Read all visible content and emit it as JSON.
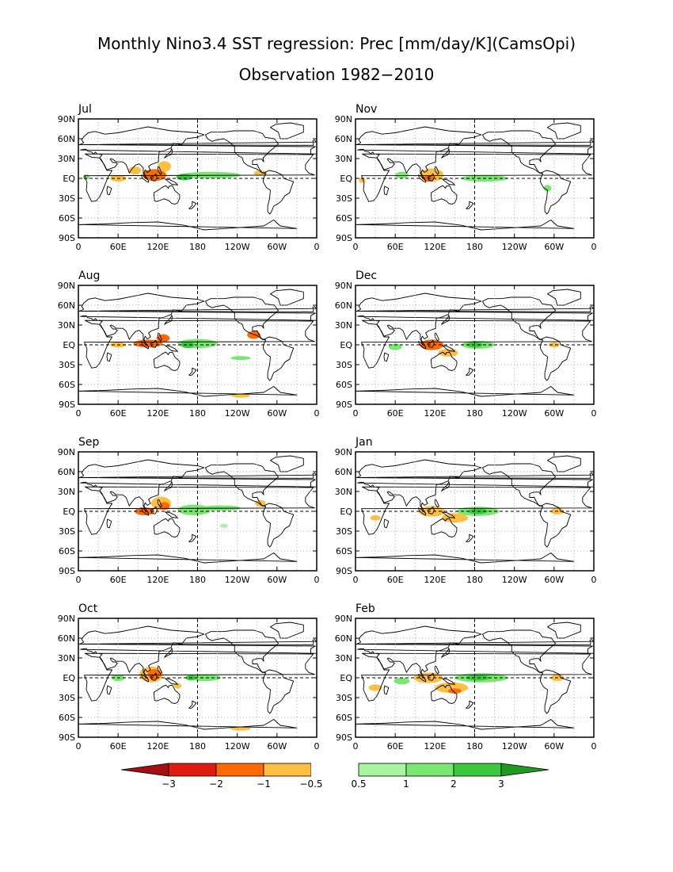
{
  "chart_data": {
    "type": "heatmap",
    "title": "Monthly Nino3.4 SST regression: Prec [mm/day/K](CamsOpi)",
    "subtitle": "Observation 1982−2010",
    "x_tick_labels": [
      "0",
      "60E",
      "120E",
      "180",
      "120W",
      "60W",
      "0"
    ],
    "y_tick_labels": [
      "90N",
      "60N",
      "30N",
      "EQ",
      "30S",
      "60S",
      "90S"
    ],
    "xlim_deg_east": [
      0,
      360
    ],
    "ylim_deg_north": [
      -90,
      90
    ],
    "grid": "dotted at 30 degree intervals; dashed lines at EQ and 180",
    "colorbar": {
      "orientation": "horizontal",
      "placement": "bottom",
      "levels": [
        -3,
        -2,
        -1,
        -0.5,
        0.5,
        1,
        2,
        3
      ],
      "level_labels": [
        "−3",
        "−2",
        "−1",
        "−0.5",
        "0.5",
        "1",
        "2",
        "3"
      ],
      "colors": [
        "#a50f0f",
        "#e01b10",
        "#ff6a00",
        "#ffbf40",
        "#ffffff",
        "#a8f5a0",
        "#78e870",
        "#3cc83c",
        "#1e9a1e"
      ]
    },
    "panels": [
      {
        "month": "Jul",
        "regions": [
          {
            "lon": 115,
            "lat": 5,
            "rx": 18,
            "ry": 9,
            "value": -2
          },
          {
            "lon": 130,
            "lat": 18,
            "rx": 10,
            "ry": 8,
            "value": -1
          },
          {
            "lon": 85,
            "lat": 12,
            "rx": 10,
            "ry": 6,
            "value": -1
          },
          {
            "lon": 60,
            "lat": 0,
            "rx": 12,
            "ry": 5,
            "value": -1
          },
          {
            "lon": 200,
            "lat": 5,
            "rx": 45,
            "ry": 5,
            "value": 1
          },
          {
            "lon": 160,
            "lat": 2,
            "rx": 12,
            "ry": 5,
            "value": 2
          },
          {
            "lon": 275,
            "lat": 8,
            "rx": 10,
            "ry": 4,
            "value": -1
          },
          {
            "lon": 12,
            "lat": 2,
            "rx": 5,
            "ry": 4,
            "value": 1
          }
        ]
      },
      {
        "month": "Aug",
        "regions": [
          {
            "lon": 105,
            "lat": 2,
            "rx": 22,
            "ry": 6,
            "value": -2
          },
          {
            "lon": 128,
            "lat": 10,
            "rx": 10,
            "ry": 6,
            "value": -2
          },
          {
            "lon": 60,
            "lat": 0,
            "rx": 12,
            "ry": 4,
            "value": -1
          },
          {
            "lon": 180,
            "lat": 2,
            "rx": 30,
            "ry": 7,
            "value": 1
          },
          {
            "lon": 165,
            "lat": 0,
            "rx": 10,
            "ry": 5,
            "value": 2
          },
          {
            "lon": 265,
            "lat": 15,
            "rx": 10,
            "ry": 6,
            "value": -2
          },
          {
            "lon": 245,
            "lat": -20,
            "rx": 15,
            "ry": 3,
            "value": 1
          },
          {
            "lon": 245,
            "lat": -77,
            "rx": 14,
            "ry": 3,
            "value": -1
          }
        ]
      },
      {
        "month": "Sep",
        "regions": [
          {
            "lon": 100,
            "lat": 0,
            "rx": 15,
            "ry": 6,
            "value": -2
          },
          {
            "lon": 125,
            "lat": 12,
            "rx": 15,
            "ry": 10,
            "value": -1
          },
          {
            "lon": 130,
            "lat": 8,
            "rx": 8,
            "ry": 6,
            "value": -2
          },
          {
            "lon": 175,
            "lat": 2,
            "rx": 25,
            "ry": 8,
            "value": 1
          },
          {
            "lon": 215,
            "lat": 5,
            "rx": 30,
            "ry": 4,
            "value": 1
          },
          {
            "lon": 275,
            "lat": 12,
            "rx": 8,
            "ry": 5,
            "value": -1
          },
          {
            "lon": 220,
            "lat": -22,
            "rx": 6,
            "ry": 3,
            "value": 0.5
          }
        ]
      },
      {
        "month": "Oct",
        "regions": [
          {
            "lon": 110,
            "lat": 5,
            "rx": 18,
            "ry": 12,
            "value": -1
          },
          {
            "lon": 115,
            "lat": 5,
            "rx": 10,
            "ry": 8,
            "value": -2
          },
          {
            "lon": 60,
            "lat": 0,
            "rx": 10,
            "ry": 5,
            "value": 1
          },
          {
            "lon": 190,
            "lat": 0,
            "rx": 25,
            "ry": 5,
            "value": 1
          },
          {
            "lon": 170,
            "lat": 0,
            "rx": 8,
            "ry": 4,
            "value": 2
          },
          {
            "lon": 150,
            "lat": -12,
            "rx": 6,
            "ry": 4,
            "value": -1
          },
          {
            "lon": 245,
            "lat": -77,
            "rx": 15,
            "ry": 3,
            "value": -1
          }
        ]
      },
      {
        "month": "Nov",
        "regions": [
          {
            "lon": 115,
            "lat": 5,
            "rx": 18,
            "ry": 10,
            "value": -1
          },
          {
            "lon": 110,
            "lat": 0,
            "rx": 8,
            "ry": 5,
            "value": -2
          },
          {
            "lon": 70,
            "lat": 5,
            "rx": 10,
            "ry": 5,
            "value": 1
          },
          {
            "lon": 195,
            "lat": 0,
            "rx": 35,
            "ry": 5,
            "value": 1
          },
          {
            "lon": 290,
            "lat": -15,
            "rx": 6,
            "ry": 5,
            "value": 1
          },
          {
            "lon": 10,
            "lat": -3,
            "rx": 5,
            "ry": 4,
            "value": -1
          }
        ]
      },
      {
        "month": "Dec",
        "regions": [
          {
            "lon": 115,
            "lat": 0,
            "rx": 18,
            "ry": 8,
            "value": -2
          },
          {
            "lon": 140,
            "lat": -12,
            "rx": 15,
            "ry": 6,
            "value": -1
          },
          {
            "lon": 185,
            "lat": 0,
            "rx": 25,
            "ry": 6,
            "value": 1
          },
          {
            "lon": 180,
            "lat": 0,
            "rx": 12,
            "ry": 4,
            "value": 2
          },
          {
            "lon": 60,
            "lat": -3,
            "rx": 10,
            "ry": 5,
            "value": 1
          },
          {
            "lon": 300,
            "lat": 0,
            "rx": 8,
            "ry": 4,
            "value": -1
          }
        ]
      },
      {
        "month": "Jan",
        "regions": [
          {
            "lon": 115,
            "lat": 0,
            "rx": 20,
            "ry": 8,
            "value": -1
          },
          {
            "lon": 150,
            "lat": -10,
            "rx": 20,
            "ry": 7,
            "value": -1
          },
          {
            "lon": 185,
            "lat": 0,
            "rx": 32,
            "ry": 7,
            "value": 1
          },
          {
            "lon": 185,
            "lat": 0,
            "rx": 15,
            "ry": 4,
            "value": 2
          },
          {
            "lon": 305,
            "lat": 0,
            "rx": 10,
            "ry": 5,
            "value": -1
          },
          {
            "lon": 30,
            "lat": -10,
            "rx": 8,
            "ry": 4,
            "value": -1
          }
        ]
      },
      {
        "month": "Feb",
        "regions": [
          {
            "lon": 110,
            "lat": 0,
            "rx": 22,
            "ry": 8,
            "value": -1
          },
          {
            "lon": 145,
            "lat": -15,
            "rx": 25,
            "ry": 8,
            "value": -1
          },
          {
            "lon": 150,
            "lat": -20,
            "rx": 10,
            "ry": 4,
            "value": -2
          },
          {
            "lon": 190,
            "lat": 0,
            "rx": 40,
            "ry": 7,
            "value": 1
          },
          {
            "lon": 185,
            "lat": 0,
            "rx": 18,
            "ry": 4,
            "value": 2
          },
          {
            "lon": 70,
            "lat": -5,
            "rx": 12,
            "ry": 5,
            "value": 1
          },
          {
            "lon": 30,
            "lat": -15,
            "rx": 10,
            "ry": 5,
            "value": -1
          },
          {
            "lon": 305,
            "lat": 0,
            "rx": 10,
            "ry": 5,
            "value": -1
          }
        ]
      }
    ]
  }
}
